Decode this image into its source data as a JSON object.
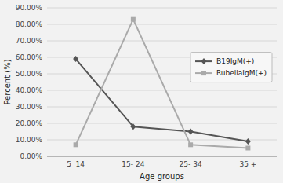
{
  "chart_data": {
    "type": "line",
    "categories": [
      "5  14",
      "15- 24",
      "25- 34",
      "35 +"
    ],
    "series": [
      {
        "name": "B19IgM(+)",
        "color": "#555555",
        "marker": "diamond",
        "values": [
          59.0,
          18.0,
          15.0,
          9.0
        ]
      },
      {
        "name": "RubellaIgM(+)",
        "color": "#aaaaaa",
        "marker": "square",
        "values": [
          7.0,
          83.0,
          7.0,
          5.0
        ]
      }
    ],
    "x_label": "Age groups",
    "y_label": "Percent (%)",
    "ylim": [
      0,
      90
    ],
    "yticks": [
      {
        "value": 0,
        "label": "0.00%"
      },
      {
        "value": 10,
        "label": "10.00%"
      },
      {
        "value": 20,
        "label": "20.00%"
      },
      {
        "value": 30,
        "label": "30.00%"
      },
      {
        "value": 40,
        "label": "40.00%"
      },
      {
        "value": 50,
        "label": "50.00%"
      },
      {
        "value": 60,
        "label": "60.00%"
      },
      {
        "value": 70,
        "label": "70.00%"
      },
      {
        "value": 80,
        "label": "80.00%"
      },
      {
        "value": 90,
        "label": "90.00%"
      }
    ],
    "grid": true,
    "legend": "right"
  }
}
